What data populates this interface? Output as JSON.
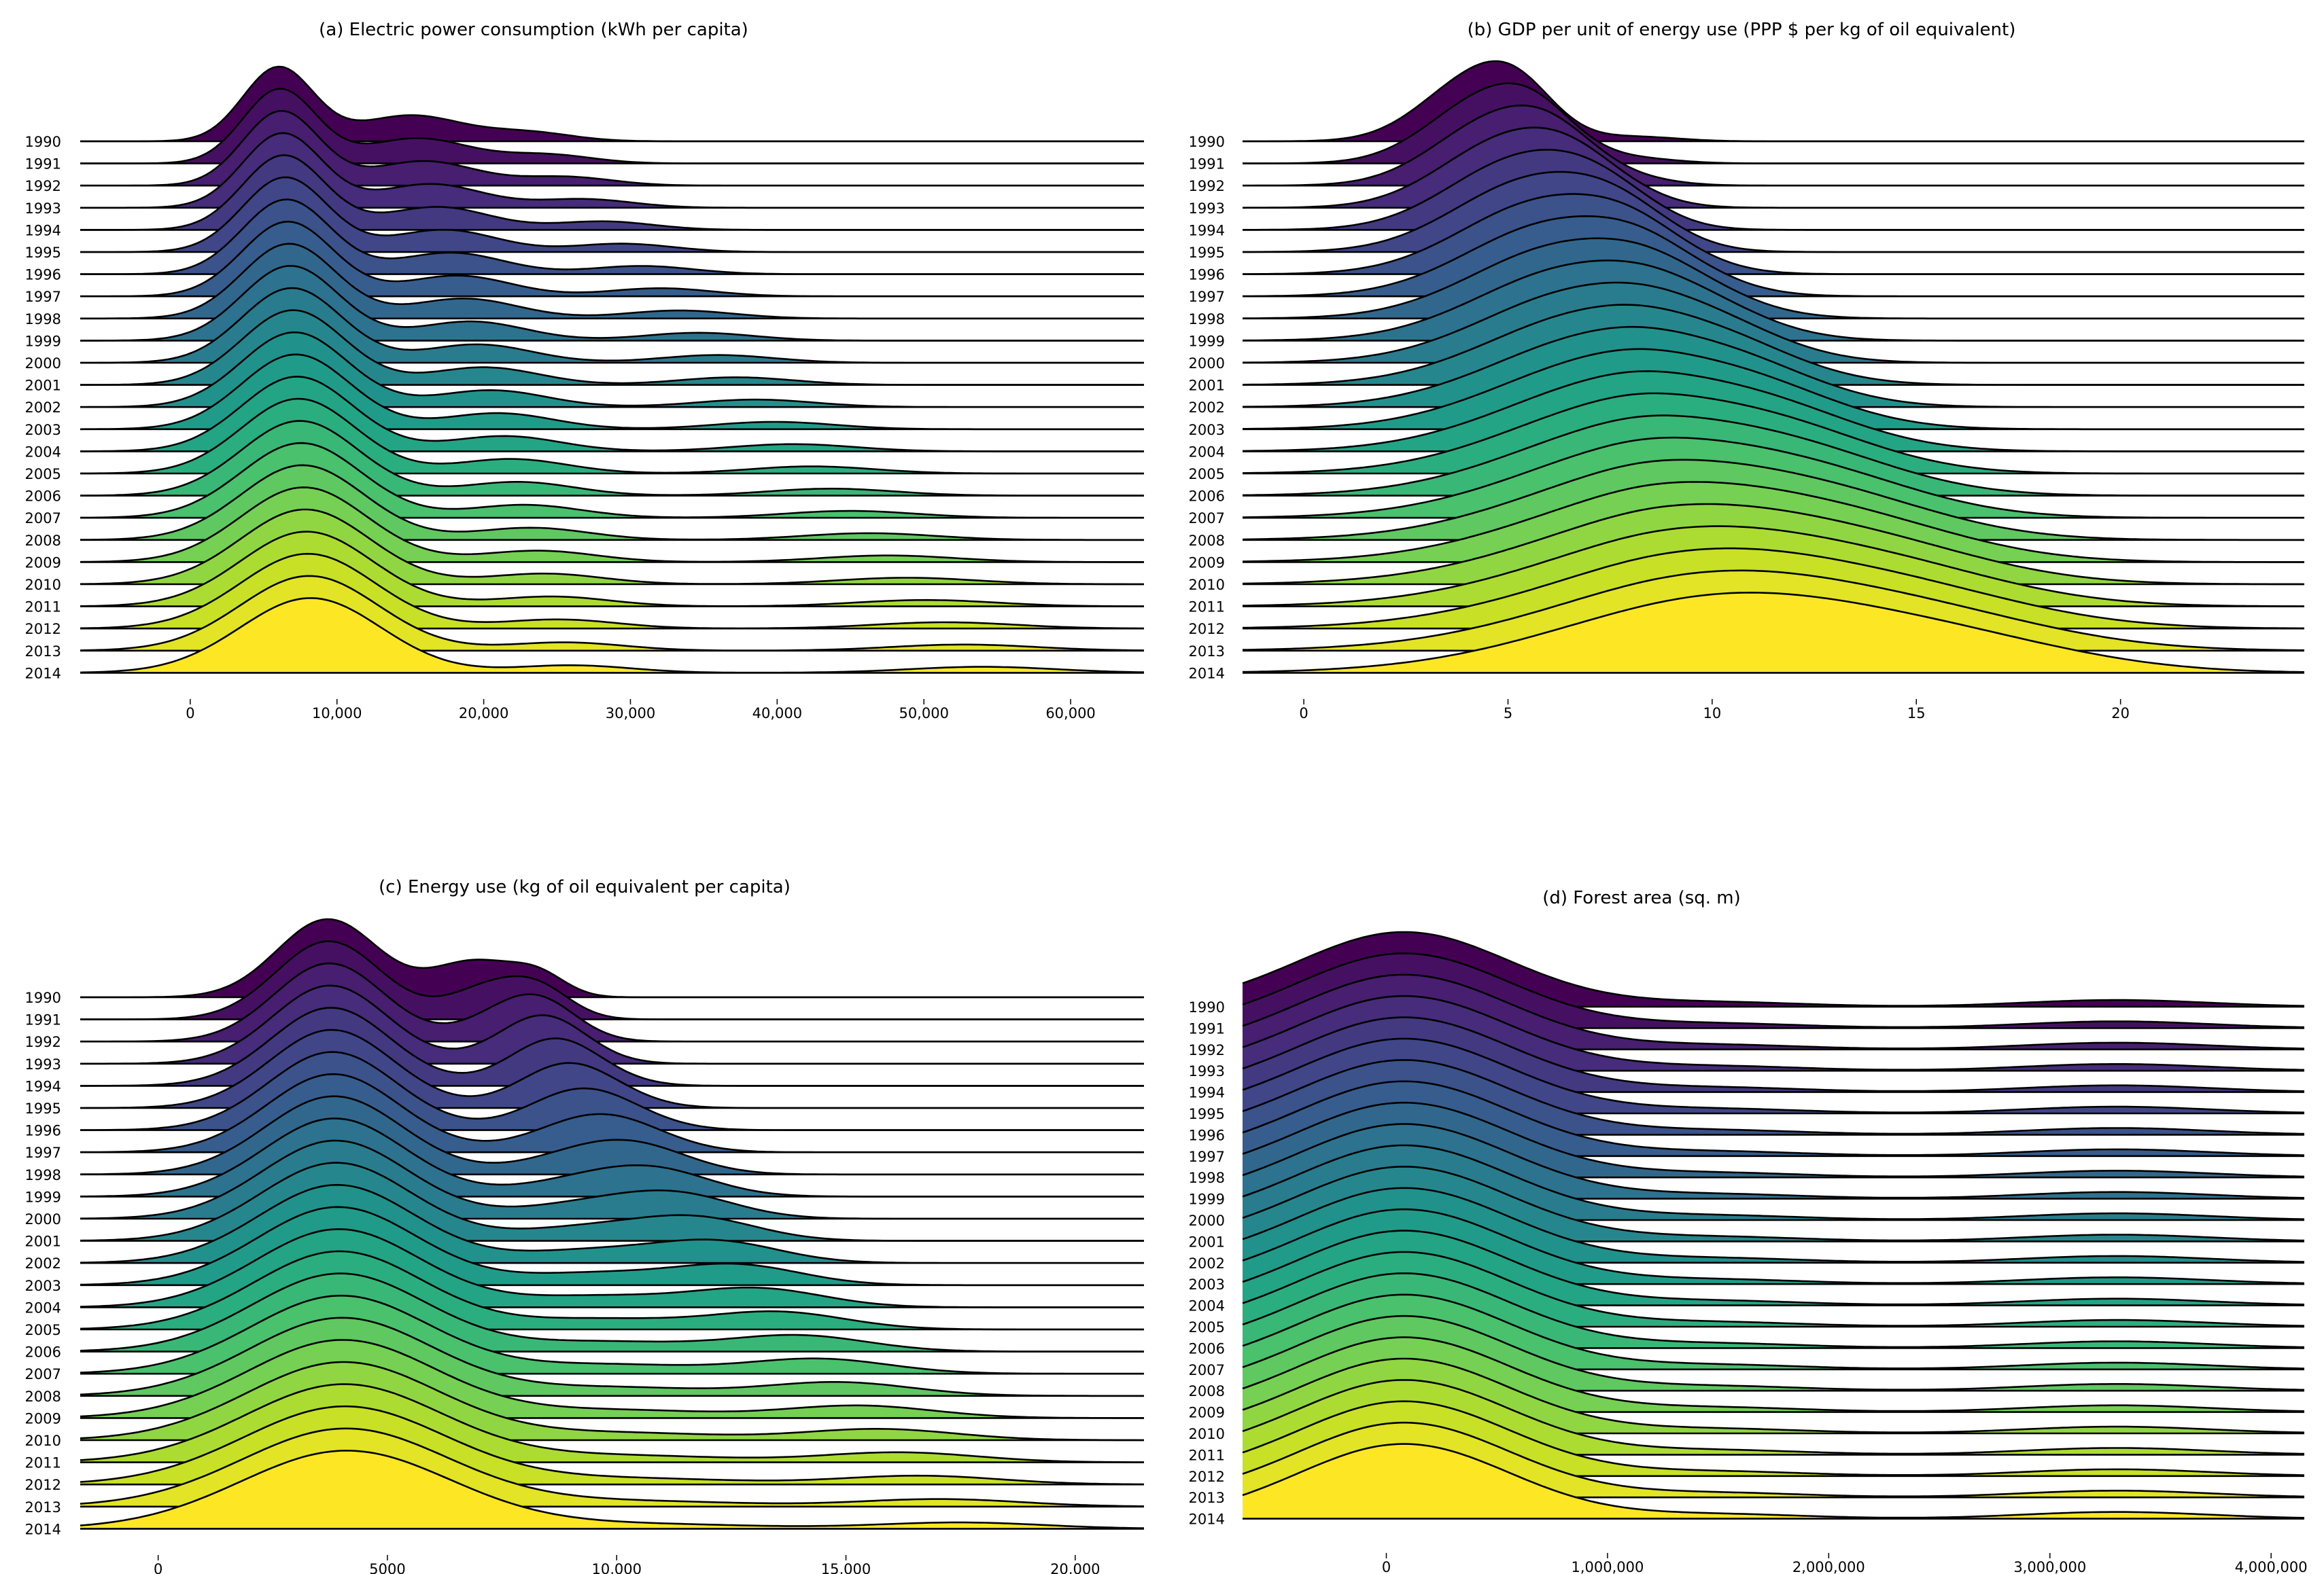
{
  "figure": {
    "layout": "2x2 grid of ridgeline plots"
  },
  "chart_data": [
    {
      "id": "a",
      "type": "ridgeline",
      "title": "(a) Electric power consumption (kWh per capita)",
      "years": [
        "1990",
        "1991",
        "1992",
        "1993",
        "1994",
        "1995",
        "1996",
        "1997",
        "1998",
        "1999",
        "2000",
        "2001",
        "2002",
        "2003",
        "2004",
        "2005",
        "2006",
        "2007",
        "2008",
        "2009",
        "2010",
        "2011",
        "2012",
        "2013",
        "2014"
      ],
      "xlim": [
        -7500,
        65000
      ],
      "xticks": [
        0,
        10000,
        20000,
        30000,
        40000,
        50000,
        60000
      ],
      "xtick_labels": [
        "0",
        "10,000",
        "20,000",
        "30,000",
        "40,000",
        "50,000",
        "60,000"
      ],
      "modes_start": [
        [
          6000,
          2400,
          1.0
        ],
        [
          15000,
          3500,
          0.35
        ],
        [
          23000,
          3000,
          0.12
        ]
      ],
      "modes_end": [
        [
          8200,
          4800,
          1.0
        ],
        [
          26000,
          4000,
          0.1
        ],
        [
          54000,
          5000,
          0.08
        ]
      ],
      "grid": false,
      "legend": "none"
    },
    {
      "id": "b",
      "type": "ridgeline",
      "title": "(b) GDP per unit of energy use (PPP $ per kg of oil equivalent)",
      "years": [
        "1990",
        "1991",
        "1992",
        "1993",
        "1994",
        "1995",
        "1996",
        "1997",
        "1998",
        "1999",
        "2000",
        "2001",
        "2002",
        "2003",
        "2004",
        "2005",
        "2006",
        "2007",
        "2008",
        "2009",
        "2010",
        "2011",
        "2012",
        "2013",
        "2014"
      ],
      "xlim": [
        -1.5,
        24.5
      ],
      "xticks": [
        0,
        5,
        10,
        15,
        20
      ],
      "xtick_labels": [
        "0",
        "5",
        "10",
        "15",
        "20"
      ],
      "modes_start": [
        [
          4.2,
          1.3,
          1.0
        ],
        [
          5.3,
          0.9,
          0.45
        ],
        [
          8.2,
          1.0,
          0.07
        ]
      ],
      "modes_end": [
        [
          10.5,
          4.0,
          1.0
        ],
        [
          16.5,
          3.0,
          0.25
        ]
      ],
      "grid": false,
      "legend": "none"
    },
    {
      "id": "c",
      "type": "ridgeline",
      "title": "(c) Energy use (kg of oil equivalent per capita)",
      "years": [
        "1990",
        "1991",
        "1992",
        "1993",
        "1994",
        "1995",
        "1996",
        "1997",
        "1998",
        "1999",
        "2000",
        "2001",
        "2002",
        "2003",
        "2004",
        "2005",
        "2006",
        "2007",
        "2008",
        "2009",
        "2010",
        "2011",
        "2012",
        "2013",
        "2014"
      ],
      "xlim": [
        -1700,
        21500
      ],
      "xticks": [
        0,
        5000,
        10000,
        15000,
        20000
      ],
      "xtick_labels": [
        "0",
        "5000",
        "10,000",
        "15,000",
        "20,000"
      ],
      "modes_start": [
        [
          3700,
          1100,
          1.0
        ],
        [
          6900,
          900,
          0.45
        ],
        [
          8300,
          600,
          0.25
        ]
      ],
      "modes_end": [
        [
          4100,
          2300,
          1.0
        ],
        [
          17500,
          1800,
          0.08
        ],
        [
          10500,
          2500,
          0.06
        ]
      ],
      "grid": false,
      "legend": "none"
    },
    {
      "id": "d",
      "type": "ridgeline",
      "title": "(d) Forest area (sq. m)",
      "years": [
        "1990",
        "1991",
        "1992",
        "1993",
        "1994",
        "1995",
        "1996",
        "1997",
        "1998",
        "1999",
        "2000",
        "2001",
        "2002",
        "2003",
        "2004",
        "2005",
        "2006",
        "2007",
        "2008",
        "2009",
        "2010",
        "2011",
        "2012",
        "2013",
        "2014"
      ],
      "xlim": [
        -650000,
        4150000
      ],
      "xticks": [
        0,
        1000000,
        2000000,
        3000000,
        4000000
      ],
      "xtick_labels": [
        "0",
        "1,000,000",
        "2,000,000",
        "3,000,000",
        "4,000,000"
      ],
      "modes_start": [
        [
          80000,
          480000,
          1.0
        ],
        [
          3300000,
          420000,
          0.09
        ],
        [
          1500000,
          400000,
          0.06
        ]
      ],
      "modes_end": [
        [
          80000,
          480000,
          1.0
        ],
        [
          3300000,
          420000,
          0.09
        ],
        [
          1500000,
          400000,
          0.06
        ]
      ],
      "grid": false,
      "legend": "none"
    }
  ]
}
